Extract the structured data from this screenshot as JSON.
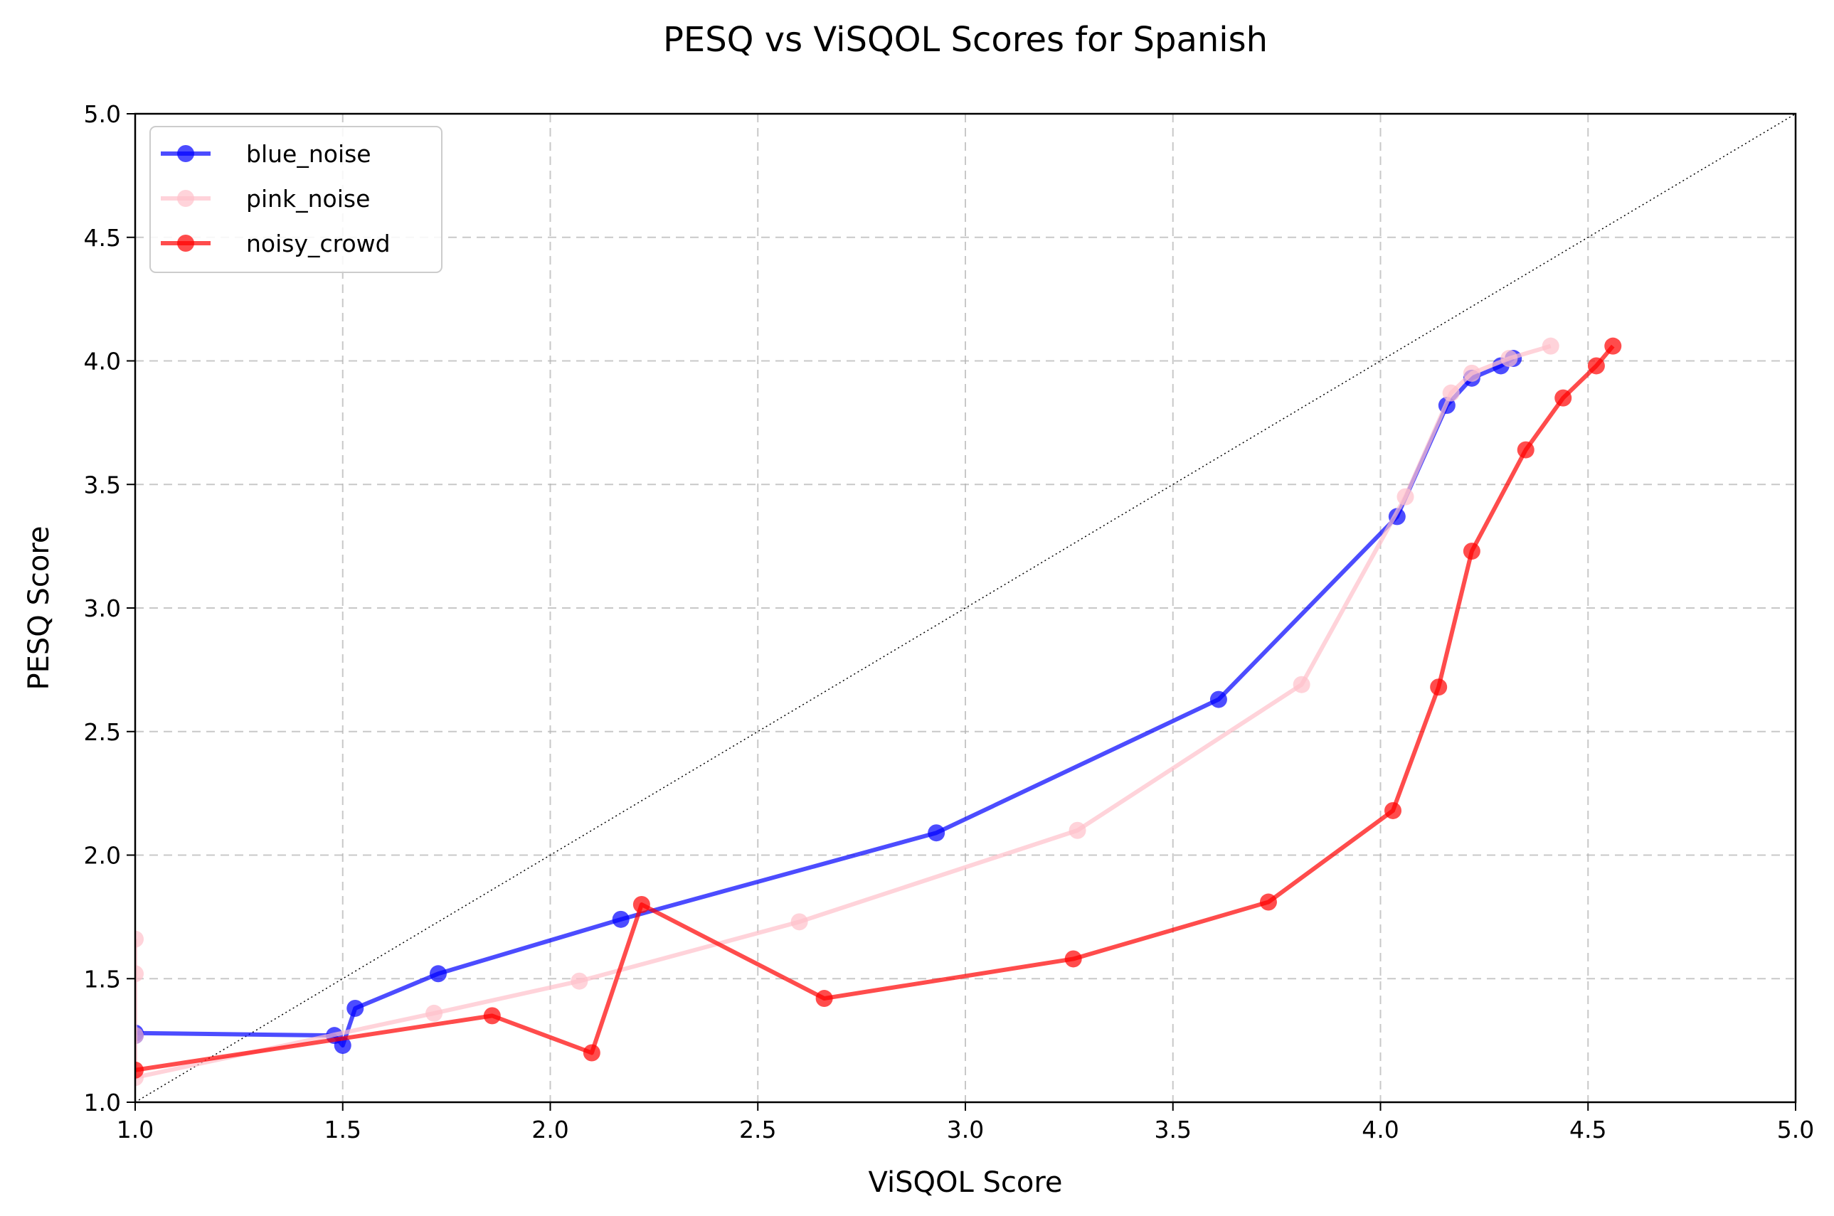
{
  "chart_data": {
    "type": "line",
    "title": "PESQ vs ViSQOL Scores for Spanish",
    "xlabel": "ViSQOL Score",
    "ylabel": "PESQ Score",
    "xlim": [
      1.0,
      5.0
    ],
    "ylim": [
      1.0,
      5.0
    ],
    "xticks": [
      "1.0",
      "1.5",
      "2.0",
      "2.5",
      "3.0",
      "3.5",
      "4.0",
      "4.5",
      "5.0"
    ],
    "yticks": [
      "1.0",
      "1.5",
      "2.0",
      "2.5",
      "3.0",
      "3.5",
      "4.0",
      "4.5",
      "5.0"
    ],
    "grid": true,
    "legend_position": "top-left",
    "reference_line": {
      "from": [
        1.0,
        1.0
      ],
      "to": [
        5.0,
        5.0
      ],
      "style": "dotted",
      "color": "#000000"
    },
    "series": [
      {
        "name": "blue_noise",
        "color": "#0000ff",
        "x": [
          1.0,
          1.0,
          1.48,
          1.5,
          1.53,
          1.73,
          2.17,
          2.93,
          3.61,
          4.04,
          4.16,
          4.22,
          4.29,
          4.32
        ],
        "y": [
          1.27,
          1.28,
          1.27,
          1.23,
          1.38,
          1.52,
          1.74,
          2.09,
          2.63,
          3.37,
          3.82,
          3.93,
          3.98,
          4.01
        ]
      },
      {
        "name": "pink_noise",
        "color": "#ffc0cb",
        "x": [
          1.0,
          1.0,
          1.0,
          1.0,
          1.72,
          2.07,
          2.6,
          3.27,
          3.81,
          4.06,
          4.17,
          4.22,
          4.31,
          4.41
        ],
        "y": [
          1.66,
          1.52,
          1.27,
          1.1,
          1.36,
          1.49,
          1.73,
          2.1,
          2.69,
          3.45,
          3.87,
          3.95,
          4.01,
          4.06
        ]
      },
      {
        "name": "noisy_crowd",
        "color": "#ff0000",
        "x": [
          1.0,
          1.86,
          2.1,
          2.22,
          2.66,
          3.26,
          3.73,
          4.03,
          4.14,
          4.22,
          4.35,
          4.44,
          4.52,
          4.56
        ],
        "y": [
          1.13,
          1.35,
          1.2,
          1.8,
          1.42,
          1.58,
          1.81,
          2.18,
          2.68,
          3.23,
          3.64,
          3.85,
          3.98,
          4.06
        ]
      }
    ]
  }
}
